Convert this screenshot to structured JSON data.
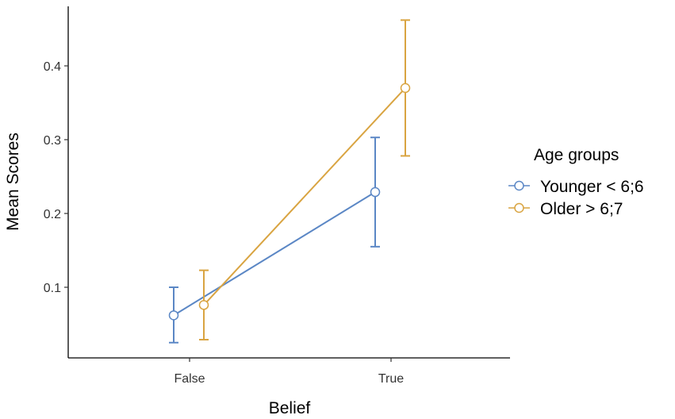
{
  "chart_data": {
    "type": "line",
    "title": "",
    "xlabel": "Belief",
    "ylabel": "Mean Scores",
    "categories": [
      "False",
      "True"
    ],
    "yticks": [
      0.1,
      0.2,
      0.3,
      0.4
    ],
    "ylim": [
      0.0,
      0.48
    ],
    "grid": false,
    "legend": {
      "title": "Age groups",
      "position": "right"
    },
    "series": [
      {
        "name": "Younger < 6;6",
        "color": "#5b87c5",
        "values": [
          0.062,
          0.229
        ],
        "error_low": [
          0.025,
          0.155
        ],
        "error_high": [
          0.1,
          0.303
        ]
      },
      {
        "name": "Older > 6;7",
        "color": "#d9a441",
        "values": [
          0.076,
          0.37
        ],
        "error_low": [
          0.029,
          0.278
        ],
        "error_high": [
          0.123,
          0.462
        ]
      }
    ]
  }
}
